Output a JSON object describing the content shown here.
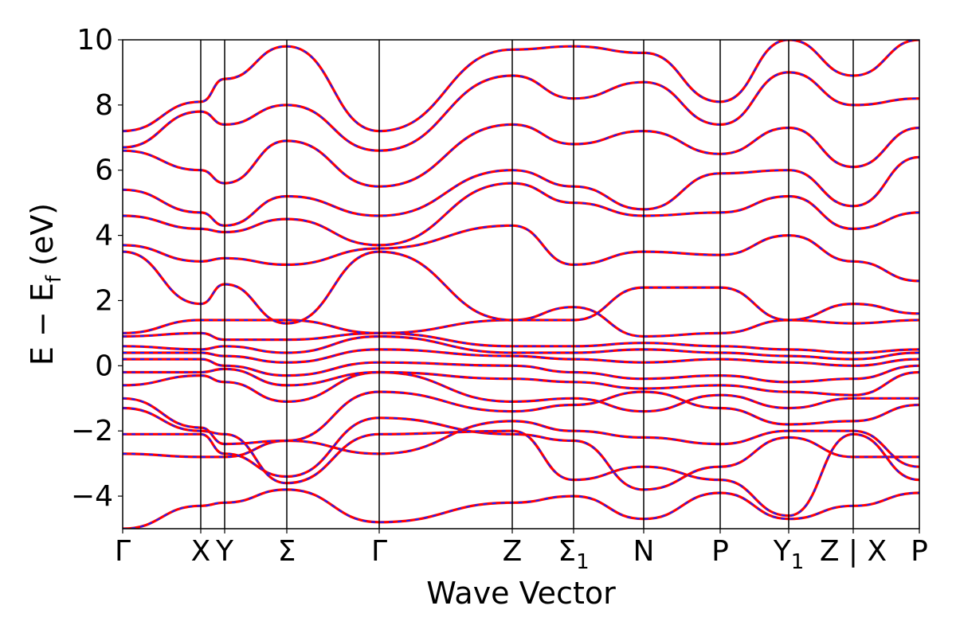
{
  "chart_data": {
    "type": "line",
    "title": "",
    "xlabel": "Wave Vector",
    "ylabel": "E − E_f (eV)",
    "ylabel_main": "E − E",
    "ylabel_sub": "f",
    "ylabel_tail": " (eV)",
    "ylim": [
      -5,
      10
    ],
    "yticks": [
      -4,
      -2,
      0,
      2,
      4,
      6,
      8,
      10
    ],
    "ytick_labels": [
      "−4",
      "−2",
      "0",
      "2",
      "4",
      "6",
      "8",
      "10"
    ],
    "grid": false,
    "legend": "none",
    "high_symmetry_points": [
      {
        "label": "Γ",
        "sub": "",
        "x": 0.0
      },
      {
        "label": "X",
        "sub": "",
        "x": 0.98
      },
      {
        "label": "Y",
        "sub": "",
        "x": 1.28
      },
      {
        "label": "Σ",
        "sub": "",
        "x": 2.06
      },
      {
        "label": "Γ",
        "sub": "",
        "x": 3.22
      },
      {
        "label": "Z",
        "sub": "",
        "x": 4.89
      },
      {
        "label": "Σ",
        "sub": "1",
        "x": 5.66
      },
      {
        "label": "N",
        "sub": "",
        "x": 6.54
      },
      {
        "label": "P",
        "sub": "",
        "x": 7.5
      },
      {
        "label": "Y",
        "sub": "1",
        "x": 8.36
      },
      {
        "label": "Z | X",
        "sub": "",
        "x": 9.17
      },
      {
        "label": "P",
        "sub": "",
        "x": 10.0
      }
    ],
    "xlim": [
      0,
      10
    ],
    "series": [
      {
        "style": "solid",
        "color": "#ff0000",
        "band_values": [
          [
            -5.0,
            -4.3,
            -4.2,
            -3.8,
            -4.8,
            -4.2,
            -4.0,
            -4.7,
            -3.9,
            -4.7,
            -4.3,
            -3.9
          ],
          [
            -2.7,
            -2.8,
            -2.8,
            -2.3,
            -2.7,
            -1.7,
            -2.0,
            -2.2,
            -2.4,
            -2.0,
            -2.0,
            -3.1
          ],
          [
            -2.1,
            -2.1,
            -2.7,
            -3.4,
            -1.6,
            -2.1,
            -2.3,
            -3.8,
            -3.1,
            -2.2,
            -2.8,
            -2.8
          ],
          [
            -1.3,
            -2.0,
            -2.1,
            -3.6,
            -2.1,
            -2.0,
            -3.5,
            -3.1,
            -3.5,
            -4.6,
            -2.1,
            -3.5
          ],
          [
            -1.0,
            -1.9,
            -2.4,
            -2.3,
            -0.8,
            -1.4,
            -1.2,
            -0.8,
            -1.3,
            -1.8,
            -1.7,
            -1.2
          ],
          [
            -0.6,
            -0.3,
            -0.5,
            -1.1,
            -0.2,
            -1.1,
            -1.0,
            -1.4,
            -0.9,
            -1.3,
            -1.0,
            -1.0
          ],
          [
            -0.2,
            -0.2,
            -0.1,
            -0.6,
            -0.2,
            -0.4,
            -0.5,
            -0.7,
            -0.6,
            -0.8,
            -0.9,
            -0.2
          ],
          [
            0.2,
            0.2,
            0.0,
            -0.3,
            0.1,
            0.0,
            -0.2,
            -0.4,
            -0.3,
            -0.5,
            -0.4,
            0.0
          ],
          [
            0.4,
            0.4,
            0.3,
            0.1,
            0.5,
            0.3,
            0.2,
            0.1,
            0.2,
            0.1,
            0.0,
            0.2
          ],
          [
            0.6,
            0.5,
            0.6,
            0.4,
            0.9,
            0.4,
            0.4,
            0.5,
            0.4,
            0.3,
            0.2,
            0.4
          ],
          [
            0.9,
            1.0,
            0.8,
            0.8,
            1.0,
            0.6,
            0.6,
            0.7,
            0.6,
            0.5,
            0.4,
            0.5
          ],
          [
            1.0,
            1.4,
            1.4,
            1.4,
            1.0,
            1.4,
            1.8,
            0.9,
            1.0,
            1.4,
            1.3,
            1.4
          ],
          [
            3.5,
            1.9,
            2.5,
            1.3,
            3.5,
            1.4,
            1.4,
            2.4,
            2.4,
            1.4,
            1.9,
            1.6
          ],
          [
            3.7,
            3.2,
            3.3,
            3.1,
            3.6,
            4.3,
            3.1,
            3.5,
            3.4,
            4.0,
            3.2,
            2.6
          ],
          [
            4.6,
            4.2,
            4.1,
            4.5,
            3.7,
            5.6,
            5.0,
            4.6,
            4.7,
            5.2,
            4.2,
            4.7
          ],
          [
            5.4,
            4.7,
            4.3,
            5.2,
            4.6,
            6.0,
            5.5,
            4.8,
            5.9,
            6.0,
            4.9,
            6.4
          ],
          [
            6.6,
            6.0,
            5.6,
            6.9,
            5.5,
            7.4,
            6.8,
            7.2,
            6.5,
            7.3,
            6.1,
            7.3
          ],
          [
            6.7,
            7.8,
            7.4,
            8.0,
            6.6,
            8.9,
            8.2,
            8.7,
            7.4,
            9.0,
            8.0,
            8.2
          ],
          [
            7.2,
            8.1,
            8.8,
            9.8,
            7.2,
            9.7,
            9.8,
            9.6,
            8.1,
            10.0,
            8.9,
            10.0
          ]
        ]
      },
      {
        "style": "dashed",
        "color": "#1a1aff",
        "same_as": "solid"
      }
    ]
  }
}
